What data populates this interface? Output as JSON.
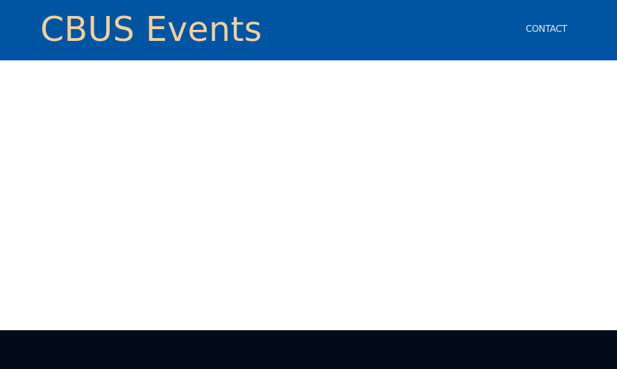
{
  "header": {
    "logo_text": "CBUS Events",
    "nav": {
      "contact_label": "CONTACT"
    }
  },
  "colors": {
    "header_background": "#0055a3",
    "logo_text": "#f2d09a",
    "nav_text": "#dce9f5",
    "page_background": "#ffffff",
    "footer_background": "#020c18"
  }
}
